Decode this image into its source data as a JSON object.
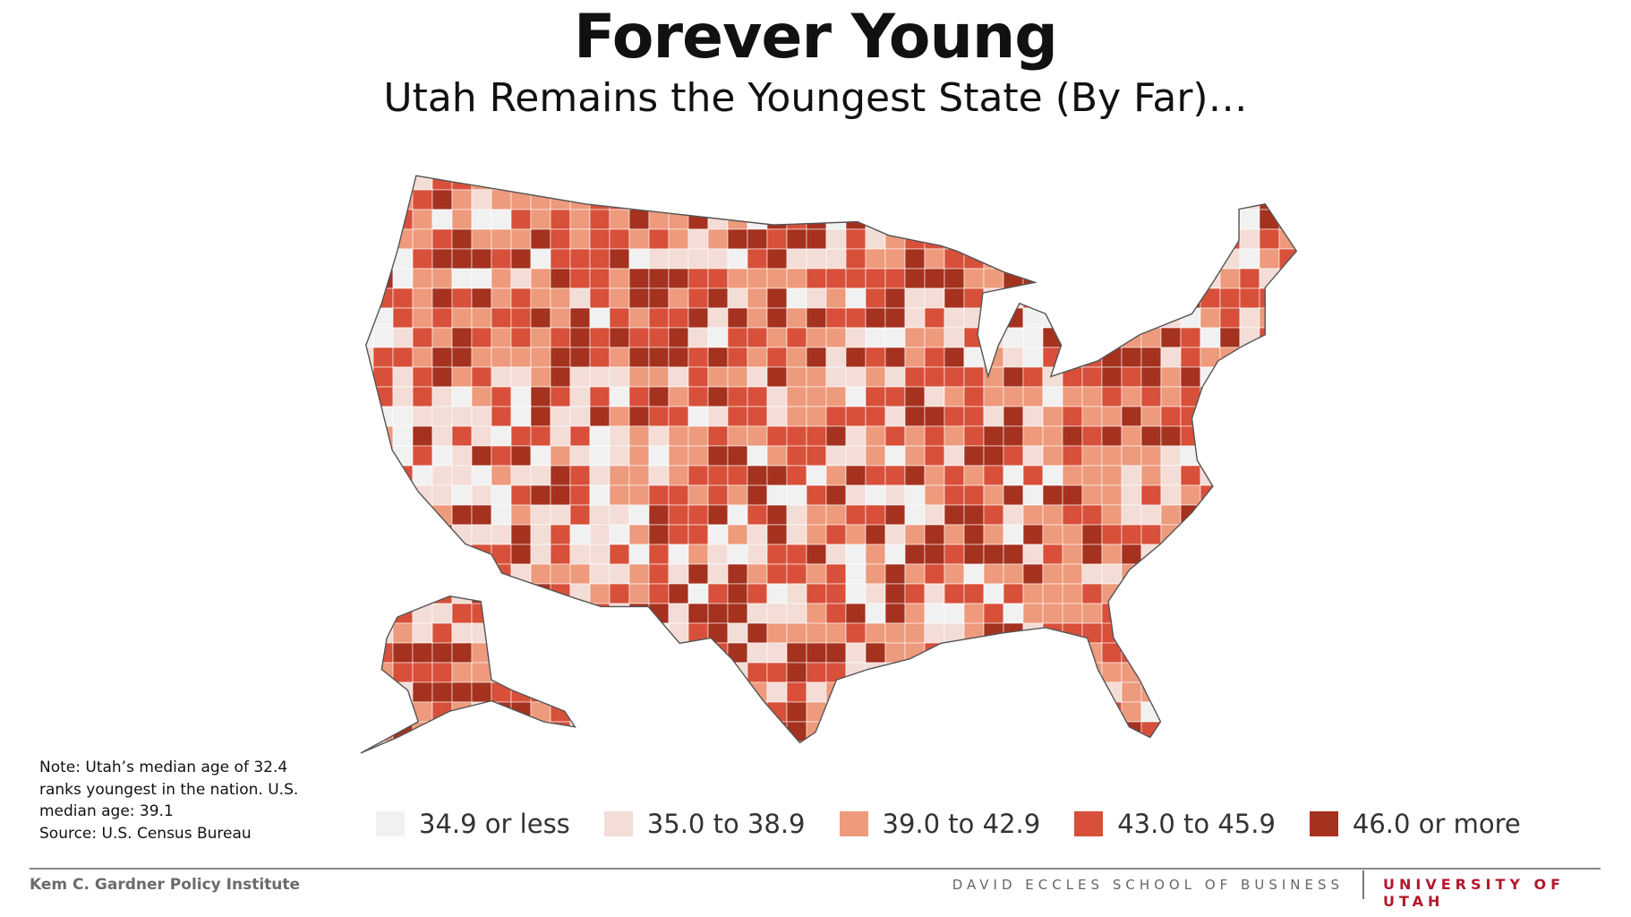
{
  "header": {
    "title": "Forever Young",
    "subtitle": "Utah Remains the Youngest State (By Far)…"
  },
  "note": [
    "Note: Utah’s median age of 32.4",
    "ranks youngest in the nation. U.S.",
    "median age: 39.1",
    "Source: U.S. Census Bureau"
  ],
  "legend": {
    "items": [
      {
        "label": "34.9 or less",
        "color": "#f2f1f1"
      },
      {
        "label": "35.0 to 38.9",
        "color": "#f3ddd6"
      },
      {
        "label": "39.0 to 42.9",
        "color": "#ee9a7c"
      },
      {
        "label": "43.0 to 45.9",
        "color": "#d8503a"
      },
      {
        "label": "46.0 or more",
        "color": "#a5311f"
      }
    ]
  },
  "footer": {
    "left": "Kem C. Gardner Policy Institute",
    "center": "DAVID ECCLES SCHOOL OF BUSINESS",
    "right": "UNIVERSITY OF UTAH"
  }
}
